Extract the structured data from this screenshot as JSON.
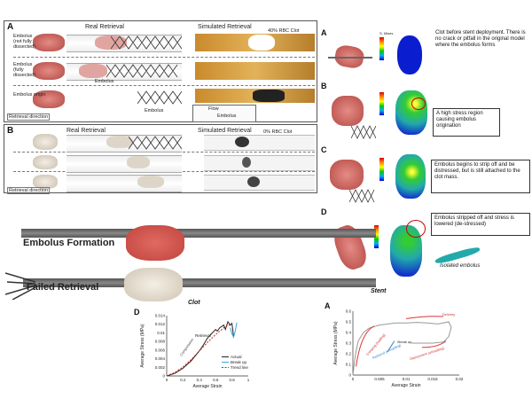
{
  "panel_a": {
    "label": "A",
    "real_header": "Real Retrieval",
    "sim_header": "Simulated Retrieval",
    "rbc_note": "40% RBC Clot",
    "row_labels": [
      "Embolus (not fully dissected)",
      "Embolus (fully dissected)",
      "Embolus origin"
    ],
    "vessel_embolus": "Embolus",
    "row3_embolus": "Embolus",
    "flow_label": "Flow",
    "sim_embolus": "Embolus",
    "retrieval_direction": "Retrieval direction"
  },
  "panel_b": {
    "label": "B",
    "real_header": "Real Retrieval",
    "sim_header": "Simulated Retrieval",
    "rbc_note": "0% RBC Clot",
    "retrieval_direction": "Retrieval direction"
  },
  "panel_right": {
    "rows": [
      {
        "label": "A",
        "text": "Clot before stent deployment. There is no crack or pitfall in the original model where the embolus forms"
      },
      {
        "label": "B",
        "text": "A high stress region causing embolus origination"
      },
      {
        "label": "C",
        "text": "Embolus begins to strip off and be distressed, but is still attached to the clot mass."
      },
      {
        "label": "D",
        "text": "Embolus stripped off and stress is lowered (de-stressed)"
      }
    ],
    "isolated_embolus": "Isolated embolus",
    "colorbar_title": "S, Mises"
  },
  "middle": {
    "embolus_formation": "Embolus Formation",
    "failed_retrieval": "Failed Retrieval",
    "clot_caption": "Clot",
    "stent_caption": "Stent"
  },
  "chart_d": {
    "label": "D"
  },
  "chart_a2": {
    "label": "A"
  },
  "chart_data": [
    {
      "type": "line",
      "xlabel": "Average Strain",
      "ylabel": "Average Stress (MPa)",
      "xlim": [
        0,
        1
      ],
      "ylim": [
        0,
        0.014
      ],
      "xticks": [
        "0",
        "0.2",
        "0.4",
        "0.6",
        "0.8",
        "1"
      ],
      "yticks": [
        "0",
        "0.002",
        "0.004",
        "0.006",
        "0.008",
        "0.01",
        "0.012",
        "0.014"
      ],
      "annotations": [
        "Retrieval",
        "Compression"
      ],
      "legend": [
        "Actual",
        "Break up",
        "Trend line"
      ],
      "legend_position": "bottom-right",
      "series": [
        {
          "name": "Actual",
          "color": "#222222",
          "x": [
            0,
            0.1,
            0.2,
            0.3,
            0.4,
            0.45,
            0.5,
            0.55,
            0.6,
            0.62,
            0.65,
            0.7,
            0.72,
            0.75,
            0.78,
            0.8,
            0.82
          ],
          "y": [
            0,
            0.0006,
            0.0018,
            0.0035,
            0.0058,
            0.0072,
            0.0088,
            0.0098,
            0.0108,
            0.0104,
            0.0112,
            0.0118,
            0.0108,
            0.0126,
            0.0118,
            0.0122,
            0.0092
          ]
        },
        {
          "name": "Break up",
          "color": "#33aadd",
          "x": [
            0.78,
            0.8,
            0.82,
            0.84,
            0.86
          ],
          "y": [
            0.0112,
            0.0098,
            0.009,
            0.0104,
            0.0124
          ]
        },
        {
          "name": "Trend line",
          "color": "#cc2222",
          "x": [
            0,
            0.1,
            0.2,
            0.3,
            0.4,
            0.5,
            0.6,
            0.7,
            0.8
          ],
          "y": [
            0,
            0.0008,
            0.0021,
            0.0038,
            0.0058,
            0.0078,
            0.0096,
            0.0112,
            0.0122
          ]
        }
      ]
    },
    {
      "type": "line",
      "xlabel": "Average Strain",
      "ylabel": "Average Stress (MPa)",
      "xlim": [
        0,
        0.02
      ],
      "ylim": [
        0,
        0.6
      ],
      "xticks": [
        "0",
        "0.005",
        "0.01",
        "0.015",
        "0.02"
      ],
      "yticks": [
        "0",
        "0.1",
        "0.2",
        "0.3",
        "0.4",
        "0.5",
        "0.6"
      ],
      "annotations": [
        "Crimping (loading)",
        "Break up",
        "Retrieval (unloading)",
        "Deployment (unloading)",
        "Delivery"
      ],
      "series": [
        {
          "name": "",
          "color": "#999999",
          "x": [
            0,
            0.0005,
            0.001,
            0.002,
            0.003,
            0.005,
            0.008,
            0.01,
            0.012,
            0.014,
            0.016,
            0.018,
            0.0185
          ],
          "y": [
            0,
            0.2,
            0.32,
            0.4,
            0.44,
            0.47,
            0.49,
            0.49,
            0.495,
            0.49,
            0.48,
            0.5,
            0.45
          ]
        },
        {
          "name": "",
          "color": "#999999",
          "x": [
            0.0185,
            0.018,
            0.017,
            0.015,
            0.013,
            0.011
          ],
          "y": [
            0.45,
            0.36,
            0.31,
            0.3,
            0.3,
            0.3
          ]
        }
      ]
    }
  ]
}
